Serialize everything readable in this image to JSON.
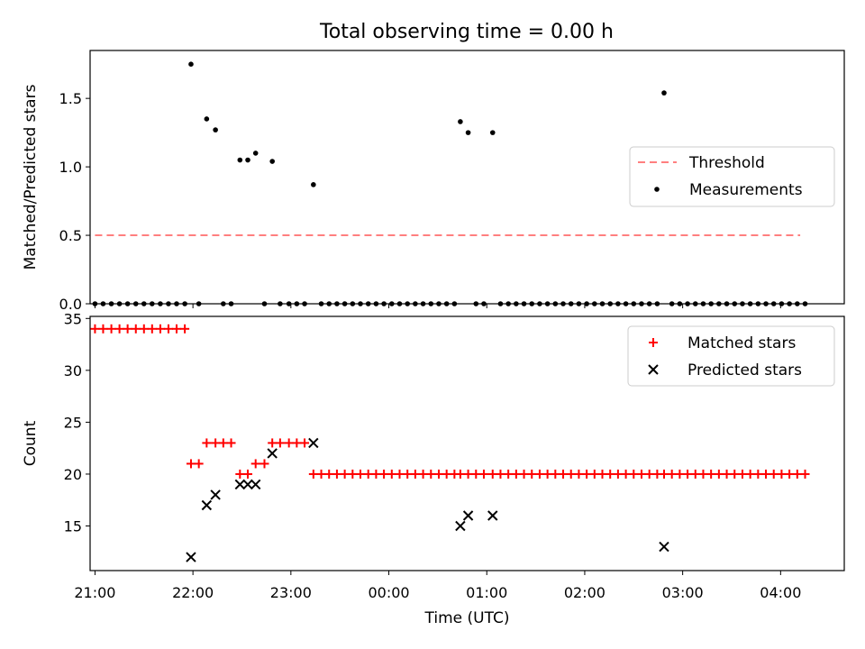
{
  "figure": {
    "title": "Total observing time = 0.00 h"
  },
  "colors": {
    "threshold": "#ff7f7f",
    "measurements": "#000000",
    "matched": "#ff0000",
    "predicted": "#000000"
  },
  "chart_data": [
    {
      "type": "scatter",
      "name": "ratio-panel",
      "xlabel": "",
      "ylabel": "Matched/Predicted stars",
      "xlim": [
        -0.05,
        7.65
      ],
      "ylim": [
        0,
        1.85
      ],
      "y_ticks": [
        0.0,
        0.5,
        1.0,
        1.5
      ],
      "y_tick_labels": [
        "0.0",
        "0.5",
        "1.0",
        "1.5"
      ],
      "x_ticks": [
        0,
        1,
        2,
        3,
        4,
        5,
        6,
        7
      ],
      "x_tick_labels": [
        "21:00",
        "22:00",
        "23:00",
        "00:00",
        "01:00",
        "02:00",
        "03:00",
        "04:00"
      ],
      "x_unit": "hours since 21:00 UTC",
      "grid": false,
      "legend_position": "center-right",
      "legend": [
        "Threshold",
        "Measurements"
      ],
      "series": [
        {
          "name": "Threshold",
          "kind": "dashed-line",
          "x": [
            0.0,
            7.2
          ],
          "y": [
            0.5,
            0.5
          ]
        },
        {
          "name": "Measurements",
          "kind": "points",
          "points": [
            [
              0.0,
              0
            ],
            [
              0.083,
              0
            ],
            [
              0.167,
              0
            ],
            [
              0.25,
              0
            ],
            [
              0.333,
              0
            ],
            [
              0.417,
              0
            ],
            [
              0.5,
              0
            ],
            [
              0.583,
              0
            ],
            [
              0.667,
              0
            ],
            [
              0.75,
              0
            ],
            [
              0.833,
              0
            ],
            [
              0.917,
              0
            ],
            [
              0.98,
              1.75
            ],
            [
              1.06,
              0
            ],
            [
              1.14,
              1.35
            ],
            [
              1.23,
              1.27
            ],
            [
              1.31,
              0
            ],
            [
              1.39,
              0
            ],
            [
              1.48,
              1.05
            ],
            [
              1.56,
              1.05
            ],
            [
              1.64,
              1.1
            ],
            [
              1.73,
              0
            ],
            [
              1.81,
              1.04
            ],
            [
              1.89,
              0
            ],
            [
              1.98,
              0
            ],
            [
              2.06,
              0
            ],
            [
              2.14,
              0
            ],
            [
              2.23,
              0.87
            ],
            [
              2.31,
              0
            ],
            [
              2.39,
              0
            ],
            [
              2.47,
              0
            ],
            [
              2.55,
              0
            ],
            [
              2.63,
              0
            ],
            [
              2.71,
              0
            ],
            [
              2.79,
              0
            ],
            [
              2.87,
              0
            ],
            [
              2.95,
              0
            ],
            [
              3.03,
              0
            ],
            [
              3.11,
              0
            ],
            [
              3.19,
              0
            ],
            [
              3.27,
              0
            ],
            [
              3.35,
              0
            ],
            [
              3.43,
              0
            ],
            [
              3.51,
              0
            ],
            [
              3.59,
              0
            ],
            [
              3.67,
              0
            ],
            [
              3.73,
              1.33
            ],
            [
              3.81,
              1.25
            ],
            [
              3.89,
              0
            ],
            [
              3.97,
              0
            ],
            [
              4.06,
              1.25
            ],
            [
              4.14,
              0
            ],
            [
              4.22,
              0
            ],
            [
              4.3,
              0
            ],
            [
              4.38,
              0
            ],
            [
              4.46,
              0
            ],
            [
              4.54,
              0
            ],
            [
              4.62,
              0
            ],
            [
              4.7,
              0
            ],
            [
              4.78,
              0
            ],
            [
              4.86,
              0
            ],
            [
              4.94,
              0
            ],
            [
              5.02,
              0
            ],
            [
              5.1,
              0
            ],
            [
              5.18,
              0
            ],
            [
              5.26,
              0
            ],
            [
              5.34,
              0
            ],
            [
              5.42,
              0
            ],
            [
              5.5,
              0
            ],
            [
              5.58,
              0
            ],
            [
              5.66,
              0
            ],
            [
              5.74,
              0
            ],
            [
              5.81,
              1.54
            ],
            [
              5.89,
              0
            ],
            [
              5.97,
              0
            ],
            [
              6.05,
              0
            ],
            [
              6.13,
              0
            ],
            [
              6.21,
              0
            ],
            [
              6.29,
              0
            ],
            [
              6.37,
              0
            ],
            [
              6.45,
              0
            ],
            [
              6.53,
              0
            ],
            [
              6.61,
              0
            ],
            [
              6.69,
              0
            ],
            [
              6.77,
              0
            ],
            [
              6.85,
              0
            ],
            [
              6.93,
              0
            ],
            [
              7.01,
              0
            ],
            [
              7.09,
              0
            ],
            [
              7.17,
              0
            ],
            [
              7.25,
              0
            ]
          ]
        }
      ]
    },
    {
      "type": "scatter",
      "name": "count-panel",
      "xlabel": "Time (UTC)",
      "ylabel": "Count",
      "xlim": [
        -0.05,
        7.65
      ],
      "ylim": [
        10.7,
        35.2
      ],
      "y_ticks": [
        15,
        20,
        25,
        30,
        35
      ],
      "y_tick_labels": [
        "15",
        "20",
        "25",
        "30",
        "35"
      ],
      "x_ticks": [
        0,
        1,
        2,
        3,
        4,
        5,
        6,
        7
      ],
      "x_tick_labels": [
        "21:00",
        "22:00",
        "23:00",
        "00:00",
        "01:00",
        "02:00",
        "03:00",
        "04:00"
      ],
      "x_unit": "hours since 21:00 UTC",
      "grid": false,
      "legend_position": "top-right",
      "legend": [
        "Matched stars",
        "Predicted stars"
      ],
      "series": [
        {
          "name": "Matched stars",
          "marker": "plus",
          "points": [
            [
              0.0,
              34
            ],
            [
              0.083,
              34
            ],
            [
              0.167,
              34
            ],
            [
              0.25,
              34
            ],
            [
              0.333,
              34
            ],
            [
              0.417,
              34
            ],
            [
              0.5,
              34
            ],
            [
              0.583,
              34
            ],
            [
              0.667,
              34
            ],
            [
              0.75,
              34
            ],
            [
              0.833,
              34
            ],
            [
              0.917,
              34
            ],
            [
              0.98,
              21
            ],
            [
              1.06,
              21
            ],
            [
              1.14,
              23
            ],
            [
              1.23,
              23
            ],
            [
              1.31,
              23
            ],
            [
              1.39,
              23
            ],
            [
              1.48,
              20
            ],
            [
              1.56,
              20
            ],
            [
              1.64,
              21
            ],
            [
              1.73,
              21
            ],
            [
              1.81,
              23
            ],
            [
              1.89,
              23
            ],
            [
              1.98,
              23
            ],
            [
              2.06,
              23
            ],
            [
              2.14,
              23
            ],
            [
              2.23,
              20
            ],
            [
              2.31,
              20
            ],
            [
              2.39,
              20
            ],
            [
              2.47,
              20
            ],
            [
              2.55,
              20
            ],
            [
              2.63,
              20
            ],
            [
              2.71,
              20
            ],
            [
              2.79,
              20
            ],
            [
              2.87,
              20
            ],
            [
              2.95,
              20
            ],
            [
              3.03,
              20
            ],
            [
              3.11,
              20
            ],
            [
              3.19,
              20
            ],
            [
              3.27,
              20
            ],
            [
              3.35,
              20
            ],
            [
              3.43,
              20
            ],
            [
              3.51,
              20
            ],
            [
              3.59,
              20
            ],
            [
              3.67,
              20
            ],
            [
              3.73,
              20
            ],
            [
              3.81,
              20
            ],
            [
              3.89,
              20
            ],
            [
              3.97,
              20
            ],
            [
              4.06,
              20
            ],
            [
              4.14,
              20
            ],
            [
              4.22,
              20
            ],
            [
              4.3,
              20
            ],
            [
              4.38,
              20
            ],
            [
              4.46,
              20
            ],
            [
              4.54,
              20
            ],
            [
              4.62,
              20
            ],
            [
              4.7,
              20
            ],
            [
              4.78,
              20
            ],
            [
              4.86,
              20
            ],
            [
              4.94,
              20
            ],
            [
              5.02,
              20
            ],
            [
              5.1,
              20
            ],
            [
              5.18,
              20
            ],
            [
              5.26,
              20
            ],
            [
              5.34,
              20
            ],
            [
              5.42,
              20
            ],
            [
              5.5,
              20
            ],
            [
              5.58,
              20
            ],
            [
              5.66,
              20
            ],
            [
              5.74,
              20
            ],
            [
              5.81,
              20
            ],
            [
              5.89,
              20
            ],
            [
              5.97,
              20
            ],
            [
              6.05,
              20
            ],
            [
              6.13,
              20
            ],
            [
              6.21,
              20
            ],
            [
              6.29,
              20
            ],
            [
              6.37,
              20
            ],
            [
              6.45,
              20
            ],
            [
              6.53,
              20
            ],
            [
              6.61,
              20
            ],
            [
              6.69,
              20
            ],
            [
              6.77,
              20
            ],
            [
              6.85,
              20
            ],
            [
              6.93,
              20
            ],
            [
              7.01,
              20
            ],
            [
              7.09,
              20
            ],
            [
              7.17,
              20
            ],
            [
              7.25,
              20
            ]
          ]
        },
        {
          "name": "Predicted stars",
          "marker": "x",
          "points": [
            [
              0.98,
              12
            ],
            [
              1.14,
              17
            ],
            [
              1.23,
              18
            ],
            [
              1.48,
              19
            ],
            [
              1.56,
              19
            ],
            [
              1.64,
              19
            ],
            [
              1.81,
              22
            ],
            [
              2.23,
              23
            ],
            [
              3.73,
              15
            ],
            [
              3.81,
              16
            ],
            [
              4.06,
              16
            ],
            [
              5.81,
              13
            ]
          ]
        }
      ]
    }
  ]
}
